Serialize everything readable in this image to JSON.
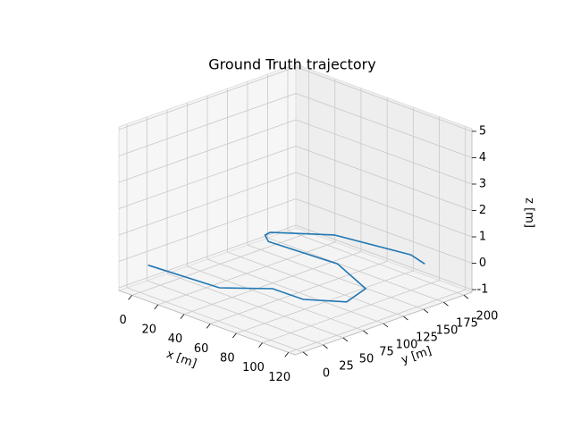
{
  "chart_data": {
    "type": "line3d",
    "title": "Ground Truth trajectory",
    "xlabel": "x [m]",
    "ylabel": "y [m]",
    "zlabel": "z [m]",
    "x": [
      5,
      56,
      77,
      100,
      119,
      112,
      75,
      25,
      17,
      16,
      43,
      93,
      108
    ],
    "y": [
      2,
      8,
      40,
      41,
      64,
      99,
      124,
      119,
      128,
      136,
      172,
      186,
      179
    ],
    "z": [
      0,
      0,
      0,
      0,
      0,
      0,
      0,
      0,
      0,
      0,
      0,
      0,
      0
    ],
    "color": "#1f77b4",
    "xlim": [
      -10,
      125
    ],
    "ylim": [
      -10,
      210
    ],
    "zlim": [
      -1.1,
      5.1
    ],
    "xticks": [
      0,
      20,
      40,
      60,
      80,
      100,
      120
    ],
    "yticks": [
      0,
      25,
      50,
      75,
      100,
      125,
      150,
      175,
      200
    ],
    "zticks": [
      -1,
      0,
      1,
      2,
      3,
      4,
      5
    ],
    "grid": true
  }
}
